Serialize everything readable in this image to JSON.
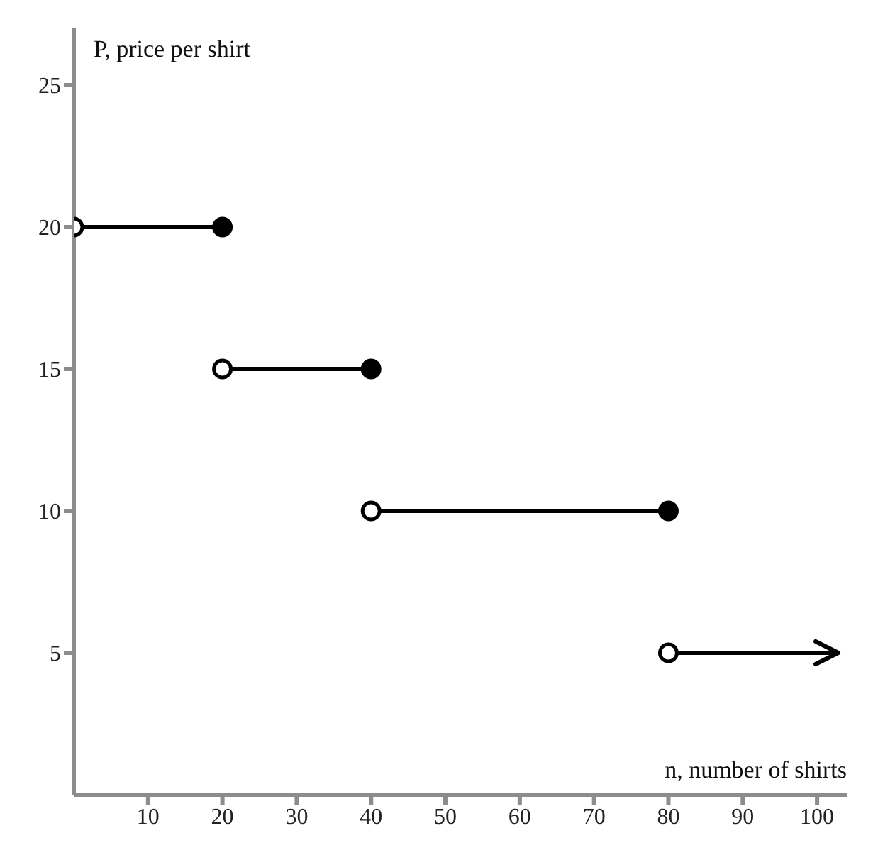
{
  "chart_data": {
    "type": "line",
    "xlabel": "n, number of shirts",
    "ylabel": "P, price per shirt",
    "xlim": [
      0,
      104
    ],
    "ylim": [
      0,
      27
    ],
    "xticks": [
      10,
      20,
      30,
      40,
      50,
      60,
      70,
      80,
      90,
      100
    ],
    "yticks": [
      5,
      10,
      15,
      20,
      25
    ],
    "grid": false,
    "legend": false,
    "line_style": "solid",
    "marker": "circle",
    "series": [
      {
        "marker": "none",
        "color": "#000000",
        "x": [
          0,
          20
        ],
        "values": [
          20,
          20
        ]
      },
      {
        "marker": "none",
        "color": "#000000",
        "x": [
          20,
          40
        ],
        "values": [
          15,
          15
        ]
      },
      {
        "marker": "none",
        "color": "#000000",
        "x": [
          40,
          80
        ],
        "values": [
          10,
          10
        ]
      },
      {
        "type": "scatter",
        "color": "#000000",
        "x": [
          20,
          40,
          80
        ],
        "values": [
          20,
          15,
          10
        ]
      },
      {
        "type": "scatter",
        "color": "#ffffff",
        "x": [
          0,
          20,
          40,
          80
        ],
        "values": [
          20,
          15,
          10,
          5
        ]
      }
    ]
  }
}
